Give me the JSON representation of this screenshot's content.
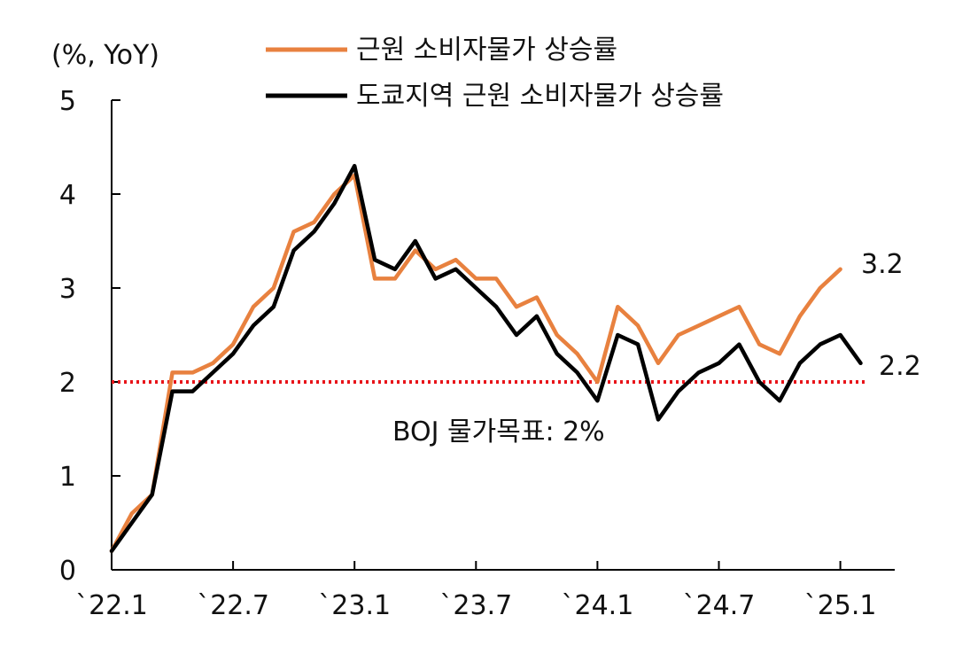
{
  "chart_data": {
    "type": "line",
    "unit_label": "(%, YoY)",
    "x_tick_labels": [
      "`22.1",
      "`22.7",
      "`23.1",
      "`23.7",
      "`24.1",
      "`24.7",
      "`25.1"
    ],
    "ylim": [
      0,
      5
    ],
    "y_ticks": [
      "0",
      "1",
      "2",
      "3",
      "4",
      "5"
    ],
    "grid": false,
    "legend_position": "top-center",
    "series": [
      {
        "name": "근원 소비자물가 상승률",
        "color": "#E8813F",
        "values": [
          0.2,
          0.6,
          0.8,
          2.1,
          2.1,
          2.2,
          2.4,
          2.8,
          3.0,
          3.6,
          3.7,
          4.0,
          4.2,
          3.1,
          3.1,
          3.4,
          3.2,
          3.3,
          3.1,
          3.1,
          2.8,
          2.9,
          2.5,
          2.3,
          2.0,
          2.8,
          2.6,
          2.2,
          2.5,
          2.6,
          2.7,
          2.8,
          2.4,
          2.3,
          2.7,
          3.0,
          3.2
        ]
      },
      {
        "name": "도쿄지역 근원 소비자물가 상승률",
        "color": "#000000",
        "values": [
          0.2,
          0.5,
          0.8,
          1.9,
          1.9,
          2.1,
          2.3,
          2.6,
          2.8,
          3.4,
          3.6,
          3.9,
          4.3,
          3.3,
          3.2,
          3.5,
          3.1,
          3.2,
          3.0,
          2.8,
          2.5,
          2.7,
          2.3,
          2.1,
          1.8,
          2.5,
          2.4,
          1.6,
          1.9,
          2.1,
          2.2,
          2.4,
          2.0,
          1.8,
          2.2,
          2.4,
          2.5,
          2.2
        ]
      }
    ],
    "reference_line": {
      "value": 2,
      "label": "BOJ 물가목표: 2%",
      "color": "#E8141A",
      "style": "dotted"
    },
    "end_labels": [
      "3.2",
      "2.2"
    ]
  }
}
